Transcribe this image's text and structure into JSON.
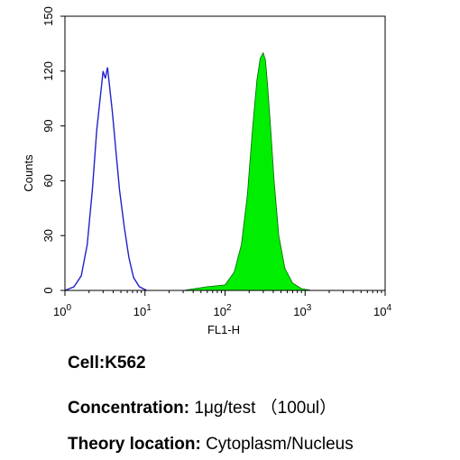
{
  "chart_data": {
    "type": "area",
    "ylabel": "Counts",
    "xlabel": "FL1-H",
    "x_scale": "log",
    "xlim": [
      1,
      10000
    ],
    "ylim": [
      0,
      150
    ],
    "x_ticks": [
      {
        "base": "10",
        "exp": "0"
      },
      {
        "base": "10",
        "exp": "1"
      },
      {
        "base": "10",
        "exp": "2"
      },
      {
        "base": "10",
        "exp": "3"
      },
      {
        "base": "10",
        "exp": "4"
      }
    ],
    "y_ticks": [
      "0",
      "30",
      "60",
      "90",
      "120",
      "150"
    ],
    "series": [
      {
        "style": "outline",
        "color": "#2222cc",
        "x": [
          1.0,
          1.3,
          1.6,
          1.9,
          2.2,
          2.5,
          2.8,
          3.0,
          3.2,
          3.4,
          3.6,
          3.9,
          4.3,
          4.8,
          5.5,
          6.3,
          7.2,
          8.5,
          10.5
        ],
        "y": [
          0,
          2,
          8,
          25,
          55,
          88,
          108,
          120,
          116,
          122,
          112,
          98,
          78,
          55,
          35,
          18,
          7,
          2,
          0
        ]
      },
      {
        "style": "filled",
        "color": "#00ee00",
        "x": [
          10,
          30,
          60,
          100,
          130,
          160,
          190,
          220,
          250,
          275,
          300,
          320,
          340,
          370,
          410,
          470,
          560,
          700,
          900,
          1200
        ],
        "y": [
          0,
          0,
          2,
          3,
          10,
          25,
          52,
          88,
          115,
          127,
          130,
          126,
          112,
          90,
          60,
          30,
          12,
          4,
          1,
          0
        ]
      }
    ]
  },
  "caption": {
    "cell_label": "Cell:",
    "cell_value": "K562",
    "concentration_label": "Concentration:",
    "concentration_value": "1μg/test （100ul）",
    "theory_label": "Theory location:",
    "theory_value": "Cytoplasm/Nucleus"
  }
}
